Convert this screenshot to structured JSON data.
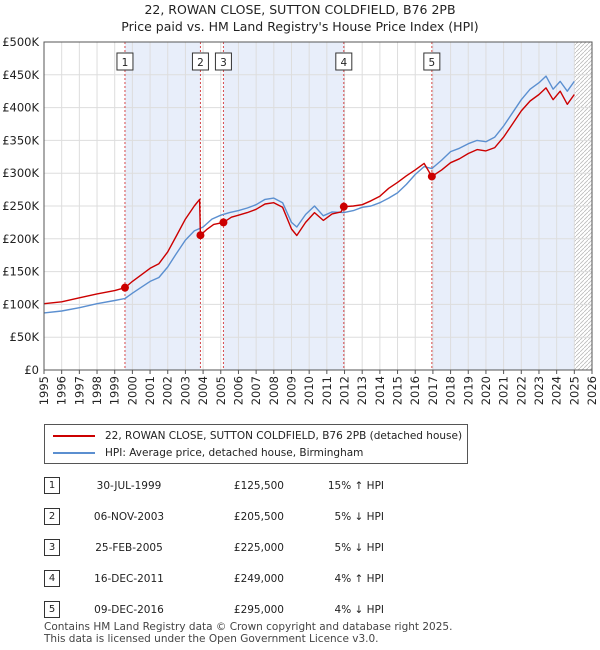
{
  "title_line1": "22, ROWAN CLOSE, SUTTON COLDFIELD, B76 2PB",
  "title_line2": "Price paid vs. HM Land Registry's House Price Index (HPI)",
  "legend": {
    "property": "22, ROWAN CLOSE, SUTTON COLDFIELD, B76 2PB (detached house)",
    "hpi": "HPI: Average price, detached house, Birmingham"
  },
  "colors": {
    "property": "#cc0000",
    "hpi": "#5b8fd0",
    "shade": "#e8eefa",
    "marker_line": "#cc0000"
  },
  "sales": [
    {
      "num": "1",
      "date": "30-JUL-1999",
      "price": "£125,500",
      "hpi": "15% ↑ HPI"
    },
    {
      "num": "2",
      "date": "06-NOV-2003",
      "price": "£205,500",
      "hpi": "5% ↓ HPI"
    },
    {
      "num": "3",
      "date": "25-FEB-2005",
      "price": "£225,000",
      "hpi": "5% ↓ HPI"
    },
    {
      "num": "4",
      "date": "16-DEC-2011",
      "price": "£249,000",
      "hpi": "4% ↑ HPI"
    },
    {
      "num": "5",
      "date": "09-DEC-2016",
      "price": "£295,000",
      "hpi": "4% ↓ HPI"
    }
  ],
  "footer_line1": "Contains HM Land Registry data © Crown copyright and database right 2025.",
  "footer_line2": "This data is licensed under the Open Government Licence v3.0.",
  "chart_data": {
    "type": "line",
    "title": "Price paid vs. HM Land Registry's House Price Index (HPI)",
    "xlabel": "",
    "ylabel": "",
    "xlim": [
      1995,
      2026
    ],
    "ylim": [
      0,
      500000
    ],
    "x_ticks": [
      "1995",
      "1996",
      "1997",
      "1998",
      "1999",
      "2000",
      "2001",
      "2002",
      "2003",
      "2004",
      "2005",
      "2006",
      "2007",
      "2008",
      "2009",
      "2010",
      "2011",
      "2012",
      "2013",
      "2014",
      "2015",
      "2016",
      "2017",
      "2018",
      "2019",
      "2020",
      "2021",
      "2022",
      "2023",
      "2024",
      "2025",
      "2026"
    ],
    "y_ticks": [
      0,
      50000,
      100000,
      150000,
      200000,
      250000,
      300000,
      350000,
      400000,
      450000,
      500000
    ],
    "y_tick_labels": [
      "£0",
      "£50K",
      "£100K",
      "£150K",
      "£200K",
      "£250K",
      "£300K",
      "£350K",
      "£400K",
      "£450K",
      "£500K"
    ],
    "grid": true,
    "data_end_year": 2025.0,
    "sale_markers": [
      {
        "label": "1",
        "x": 1999.58,
        "y": 125500
      },
      {
        "label": "2",
        "x": 2003.85,
        "y": 205500
      },
      {
        "label": "3",
        "x": 2005.15,
        "y": 225000
      },
      {
        "label": "4",
        "x": 2011.96,
        "y": 249000
      },
      {
        "label": "5",
        "x": 2016.94,
        "y": 295000
      }
    ],
    "series": [
      {
        "name": "22, ROWAN CLOSE, SUTTON COLDFIELD, B76 2PB (detached house)",
        "x": [
          1995.0,
          1996.0,
          1997.0,
          1998.0,
          1999.0,
          1999.58,
          2000.0,
          2000.5,
          2001.0,
          2001.5,
          2002.0,
          2002.5,
          2003.0,
          2003.5,
          2003.8,
          2003.85,
          2004.2,
          2004.6,
          2005.15,
          2005.6,
          2006.0,
          2006.5,
          2007.0,
          2007.5,
          2008.0,
          2008.5,
          2009.0,
          2009.3,
          2009.8,
          2010.3,
          2010.8,
          2011.3,
          2011.8,
          2011.96,
          2012.5,
          2013.0,
          2013.5,
          2014.0,
          2014.5,
          2015.0,
          2015.5,
          2016.0,
          2016.5,
          2016.94,
          2017.5,
          2018.0,
          2018.5,
          2019.0,
          2019.5,
          2020.0,
          2020.5,
          2021.0,
          2021.5,
          2022.0,
          2022.5,
          2023.0,
          2023.4,
          2023.8,
          2024.2,
          2024.6,
          2025.0
        ],
        "y": [
          101000,
          104000,
          110000,
          116000,
          121000,
          125500,
          135000,
          145000,
          155000,
          162000,
          180000,
          205000,
          230000,
          250000,
          260000,
          205500,
          214000,
          222000,
          225000,
          233000,
          236000,
          240000,
          245000,
          253000,
          255000,
          248000,
          215000,
          205000,
          225000,
          240000,
          228000,
          238000,
          241000,
          249000,
          250000,
          252000,
          258000,
          265000,
          277000,
          286000,
          296000,
          305000,
          315000,
          295000,
          305000,
          316000,
          322000,
          330000,
          336000,
          334000,
          339000,
          355000,
          375000,
          395000,
          410000,
          420000,
          430000,
          412000,
          425000,
          405000,
          420000
        ]
      },
      {
        "name": "HPI: Average price, detached house, Birmingham",
        "x": [
          1995.0,
          1996.0,
          1997.0,
          1998.0,
          1999.0,
          1999.58,
          2000.0,
          2000.5,
          2001.0,
          2001.5,
          2002.0,
          2002.5,
          2003.0,
          2003.5,
          2004.0,
          2004.5,
          2005.0,
          2005.5,
          2006.0,
          2006.5,
          2007.0,
          2007.5,
          2008.0,
          2008.5,
          2009.0,
          2009.3,
          2009.8,
          2010.3,
          2010.8,
          2011.3,
          2011.96,
          2012.5,
          2013.0,
          2013.5,
          2014.0,
          2014.5,
          2015.0,
          2015.5,
          2016.0,
          2016.5,
          2016.94,
          2017.5,
          2018.0,
          2018.5,
          2019.0,
          2019.5,
          2020.0,
          2020.5,
          2021.0,
          2021.5,
          2022.0,
          2022.5,
          2023.0,
          2023.4,
          2023.8,
          2024.2,
          2024.6,
          2025.0
        ],
        "y": [
          87000,
          90000,
          95000,
          101000,
          106000,
          109000,
          117000,
          126000,
          135000,
          141000,
          157000,
          178000,
          198000,
          212000,
          218000,
          230000,
          236000,
          240000,
          243000,
          247000,
          252000,
          260000,
          262000,
          255000,
          225000,
          218000,
          237000,
          250000,
          235000,
          241000,
          240000,
          243000,
          248000,
          250000,
          255000,
          262000,
          270000,
          283000,
          298000,
          310000,
          307000,
          320000,
          333000,
          338000,
          345000,
          350000,
          348000,
          355000,
          372000,
          392000,
          412000,
          428000,
          438000,
          448000,
          428000,
          440000,
          425000,
          440000
        ]
      }
    ]
  }
}
